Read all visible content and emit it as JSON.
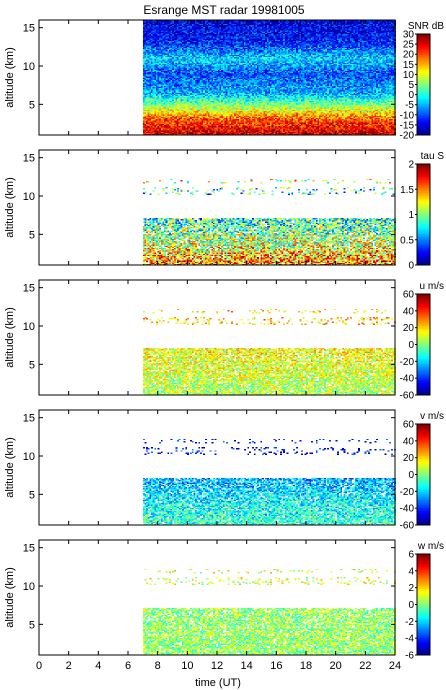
{
  "figure": {
    "title": "Esrange MST radar 19981005",
    "xlabel": "time (UT)"
  },
  "chart_data": [
    {
      "type": "heatmap",
      "id": "snr",
      "ylabel": "altitude (km)",
      "colorbar_label": "SNR dB",
      "xlim": [
        0,
        24
      ],
      "ylim": [
        1,
        16
      ],
      "xticks": [
        0,
        2,
        4,
        6,
        8,
        10,
        12,
        14,
        16,
        18,
        20,
        22,
        24
      ],
      "yticks": [
        5,
        10,
        15
      ],
      "clim": [
        -20,
        30
      ],
      "colorbar_ticks": [
        -20,
        -15,
        -10,
        -5,
        0,
        5,
        10,
        15,
        20,
        25,
        30
      ],
      "data_time_start": 7,
      "data_time_end": 24,
      "profile": [
        {
          "altitude": 1.5,
          "value": 25
        },
        {
          "altitude": 3,
          "value": 20
        },
        {
          "altitude": 5,
          "value": 5
        },
        {
          "altitude": 6.5,
          "value": -5
        },
        {
          "altitude": 9,
          "value": -10
        },
        {
          "altitude": 11,
          "value": -3
        },
        {
          "altitude": 13,
          "value": -12
        },
        {
          "altitude": 15.5,
          "value": -15
        }
      ]
    },
    {
      "type": "heatmap",
      "id": "tau",
      "ylabel": "altitude (km)",
      "colorbar_label": "tau S",
      "xlim": [
        0,
        24
      ],
      "ylim": [
        1,
        16
      ],
      "xticks": [
        0,
        2,
        4,
        6,
        8,
        10,
        12,
        14,
        16,
        18,
        20,
        22,
        24
      ],
      "yticks": [
        5,
        10,
        15
      ],
      "clim": [
        0,
        2
      ],
      "colorbar_ticks": [
        0,
        0.5,
        1,
        1.5,
        2
      ],
      "data_time_start": 7,
      "data_time_end": 24,
      "profile": [
        {
          "altitude": 1.5,
          "value": 1.5
        },
        {
          "altitude": 4,
          "value": 1.1
        },
        {
          "altitude": 7,
          "value": 0.8
        },
        {
          "altitude": 10.5,
          "value": 0.7
        },
        {
          "altitude": 12,
          "value": 1.2
        }
      ]
    },
    {
      "type": "heatmap",
      "id": "u",
      "ylabel": "altitude (km)",
      "colorbar_label": "u m/s",
      "xlim": [
        0,
        24
      ],
      "ylim": [
        1,
        16
      ],
      "xticks": [
        0,
        2,
        4,
        6,
        8,
        10,
        12,
        14,
        16,
        18,
        20,
        22,
        24
      ],
      "yticks": [
        5,
        10,
        15
      ],
      "clim": [
        -60,
        60
      ],
      "colorbar_ticks": [
        -60,
        -40,
        -20,
        0,
        20,
        40,
        60
      ],
      "data_time_start": 7,
      "data_time_end": 24,
      "profile": [
        {
          "altitude": 1.5,
          "value": 5
        },
        {
          "altitude": 4,
          "value": 10
        },
        {
          "altitude": 7,
          "value": 15
        },
        {
          "altitude": 10.5,
          "value": 22
        },
        {
          "altitude": 12,
          "value": 20
        }
      ]
    },
    {
      "type": "heatmap",
      "id": "v",
      "ylabel": "altitude (km)",
      "colorbar_label": "v m/s",
      "xlim": [
        0,
        24
      ],
      "ylim": [
        1,
        16
      ],
      "xticks": [
        0,
        2,
        4,
        6,
        8,
        10,
        12,
        14,
        16,
        18,
        20,
        22,
        24
      ],
      "yticks": [
        5,
        10,
        15
      ],
      "clim": [
        -60,
        60
      ],
      "colorbar_ticks": [
        -60,
        -40,
        -20,
        0,
        20,
        40,
        60
      ],
      "data_time_start": 7,
      "data_time_end": 24,
      "profile": [
        {
          "altitude": 1.5,
          "value": -10
        },
        {
          "altitude": 4,
          "value": -15
        },
        {
          "altitude": 7,
          "value": -25
        },
        {
          "altitude": 10.5,
          "value": -45
        },
        {
          "altitude": 12,
          "value": -45
        }
      ]
    },
    {
      "type": "heatmap",
      "id": "w",
      "ylabel": "altitude (km)",
      "colorbar_label": "w m/s",
      "xlim": [
        0,
        24
      ],
      "ylim": [
        1,
        16
      ],
      "xticks": [
        0,
        2,
        4,
        6,
        8,
        10,
        12,
        14,
        16,
        18,
        20,
        22,
        24
      ],
      "yticks": [
        5,
        10,
        15
      ],
      "clim": [
        -6,
        6
      ],
      "colorbar_ticks": [
        -6,
        -4,
        -2,
        0,
        2,
        4,
        6
      ],
      "data_time_start": 7,
      "data_time_end": 24,
      "profile": [
        {
          "altitude": 1.5,
          "value": 0.2
        },
        {
          "altitude": 4,
          "value": 0.3
        },
        {
          "altitude": 7,
          "value": 0.2
        },
        {
          "altitude": 10.5,
          "value": 1.0
        },
        {
          "altitude": 12,
          "value": 1.0
        }
      ]
    }
  ]
}
